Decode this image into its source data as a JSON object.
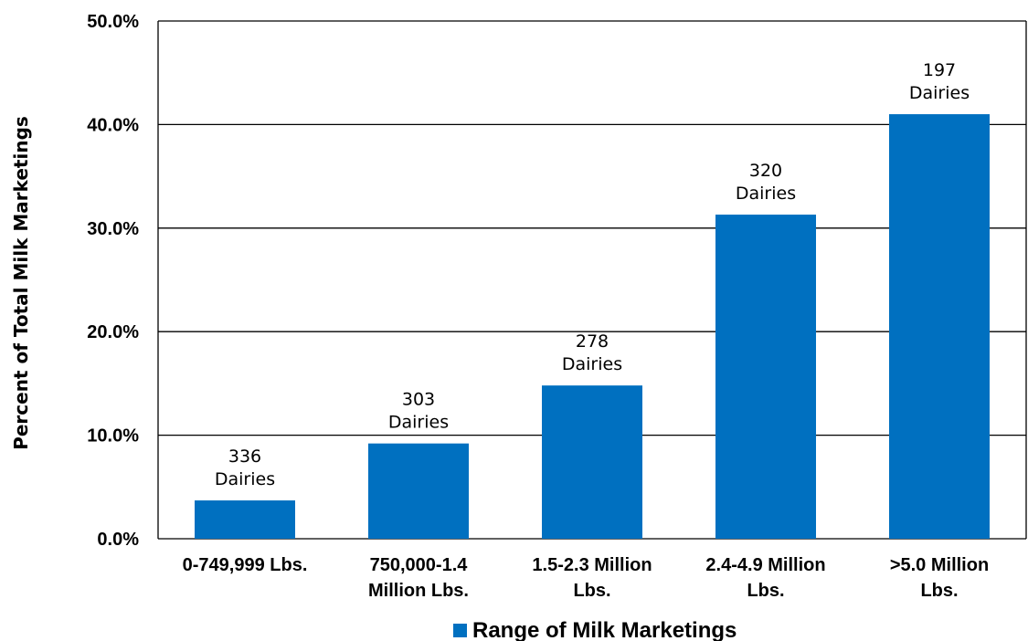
{
  "chart_data": {
    "type": "bar",
    "categories": [
      [
        "0-749,999 Lbs."
      ],
      [
        "750,000-1.4",
        "Million Lbs."
      ],
      [
        "1.5-2.3 Million",
        "Lbs."
      ],
      [
        "2.4-4.9 Million",
        "Lbs."
      ],
      [
        ">5.0 Million",
        "Lbs."
      ]
    ],
    "series": [
      {
        "name": "Range of Milk Marketings",
        "values": [
          3.7,
          9.2,
          14.8,
          31.3,
          41.0
        ],
        "color": "#0070c0"
      }
    ],
    "data_labels": [
      [
        "336",
        "Dairies"
      ],
      [
        "303",
        "Dairies"
      ],
      [
        "278",
        "Dairies"
      ],
      [
        "320",
        "Dairies"
      ],
      [
        "197",
        "Dairies"
      ]
    ],
    "ylabel": "Percent of Total Milk Marketings",
    "xlabel": "",
    "ylim": [
      0,
      50
    ],
    "yticks": [
      "0.0%",
      "10.0%",
      "20.0%",
      "30.0%",
      "40.0%",
      "50.0%"
    ],
    "grid": true,
    "legend_position": "bottom-center"
  }
}
